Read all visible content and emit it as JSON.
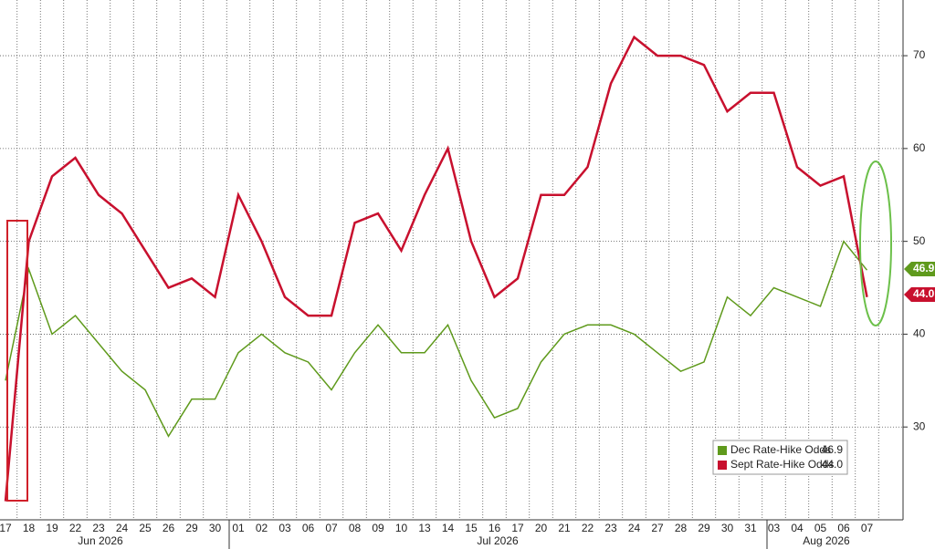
{
  "chart_data": {
    "type": "line",
    "categories": [
      "17",
      "18",
      "19",
      "22",
      "23",
      "24",
      "25",
      "26",
      "29",
      "30",
      "01",
      "02",
      "03",
      "06",
      "07",
      "08",
      "09",
      "10",
      "13",
      "14",
      "15",
      "16",
      "17",
      "20",
      "21",
      "22",
      "23",
      "24",
      "27",
      "28",
      "29",
      "30",
      "31",
      "03",
      "04",
      "05",
      "06",
      "07"
    ],
    "months": [
      "Jun 2026",
      "Jul 2026",
      "Aug 2026"
    ],
    "series": [
      {
        "name": "Dec Rate-Hike Odds",
        "color": "#5f9a1c",
        "legend_value": "46.9",
        "values": [
          35,
          47,
          40,
          42,
          39,
          36,
          34,
          29,
          33,
          33,
          38,
          40,
          38,
          37,
          34,
          38,
          41,
          38,
          38,
          41,
          35,
          31,
          32,
          37,
          40,
          41,
          41,
          40,
          38,
          36,
          37,
          44,
          42,
          45,
          44,
          43,
          50,
          46.9
        ]
      },
      {
        "name": "Sept Rate-Hike Odds",
        "color": "#c8102e",
        "legend_value": "44.0",
        "values": [
          22,
          50,
          57,
          59,
          55,
          53,
          49,
          45,
          46,
          44,
          55,
          50,
          44,
          42,
          42,
          52,
          53,
          49,
          55,
          60,
          50,
          44,
          46,
          55,
          55,
          58,
          67,
          72,
          70,
          70,
          69,
          64,
          66,
          66,
          58,
          56,
          57,
          44
        ]
      }
    ],
    "ylim": [
      20,
      76
    ],
    "yticks": [
      30,
      40,
      50,
      60,
      70
    ],
    "grid": true
  }
}
